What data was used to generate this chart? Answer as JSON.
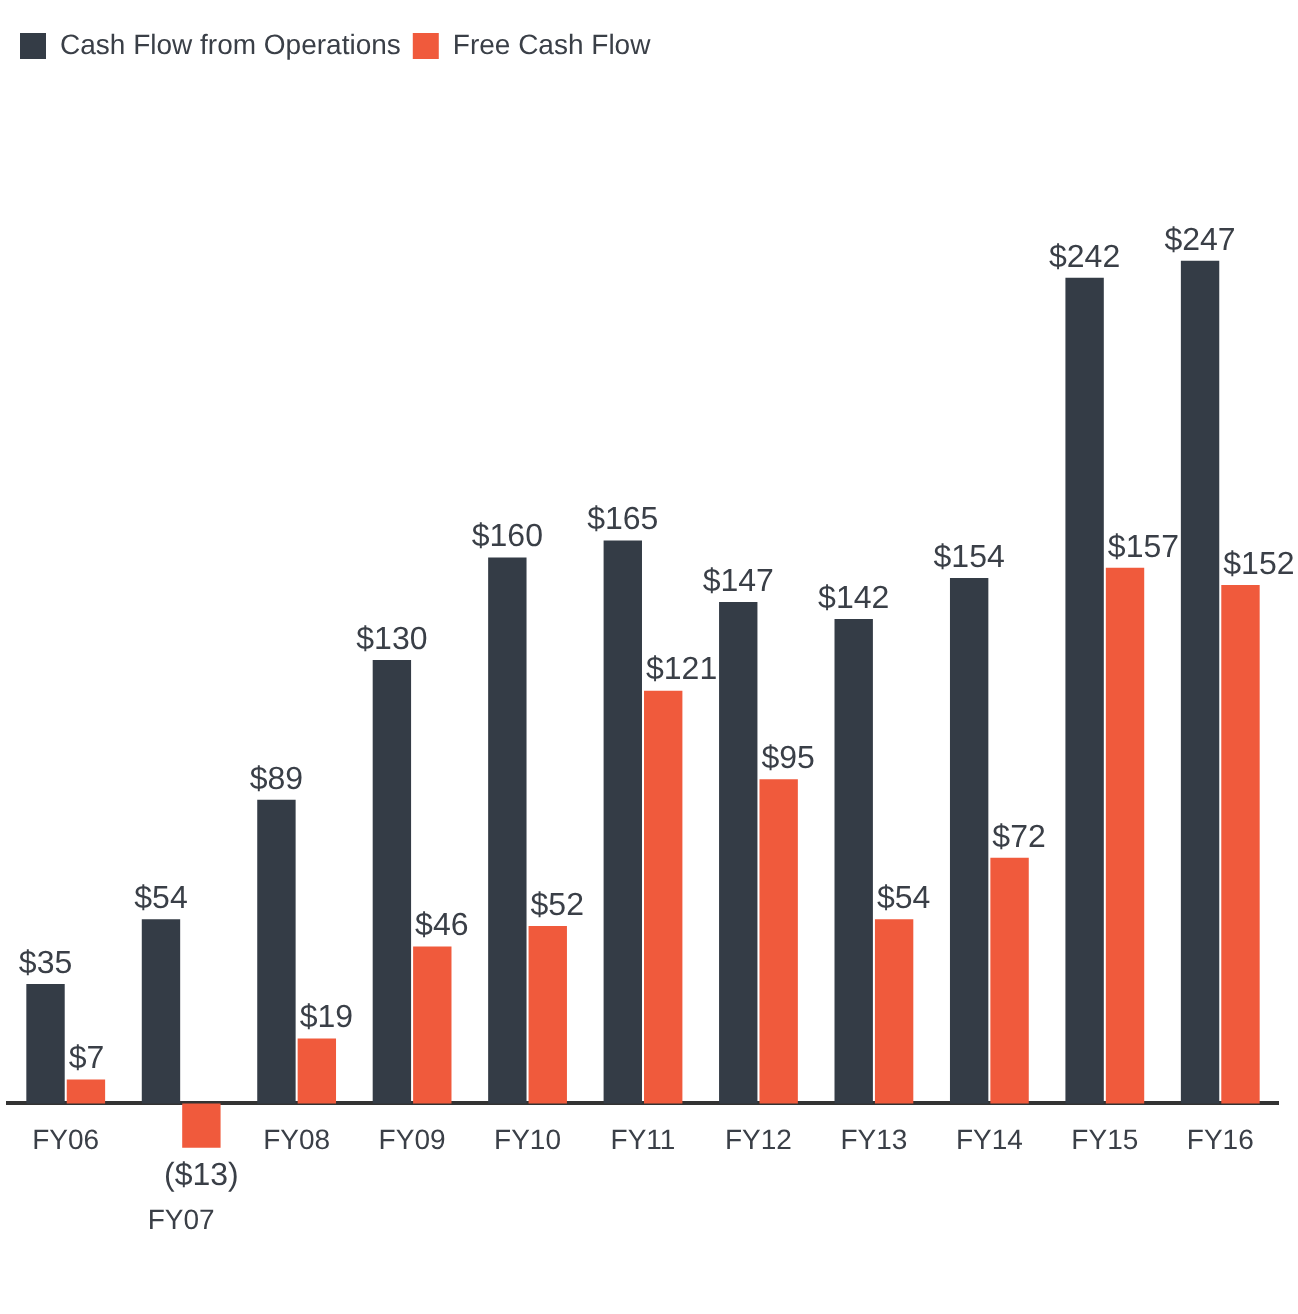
{
  "chart_data": {
    "type": "bar",
    "categories": [
      "FY06",
      "FY07",
      "FY08",
      "FY09",
      "FY10",
      "FY11",
      "FY12",
      "FY13",
      "FY14",
      "FY15",
      "FY16"
    ],
    "series": [
      {
        "name": "Cash Flow from Operations",
        "color": "#343c46",
        "values": [
          35,
          54,
          89,
          130,
          160,
          165,
          147,
          142,
          154,
          242,
          247
        ],
        "value_labels": [
          "$35",
          "$54",
          "$89",
          "$130",
          "$160",
          "$165",
          "$147",
          "$142",
          "$154",
          "$242",
          "$247"
        ]
      },
      {
        "name": "Free Cash Flow",
        "color": "#f05a3c",
        "values": [
          7,
          -13,
          19,
          46,
          52,
          121,
          95,
          54,
          72,
          157,
          152
        ],
        "value_labels": [
          "$7",
          "($13)",
          "$19",
          "$46",
          "$52",
          "$121",
          "$95",
          "$54",
          "$72",
          "$157",
          "$152"
        ]
      }
    ],
    "legend": "top left",
    "grid": false
  }
}
